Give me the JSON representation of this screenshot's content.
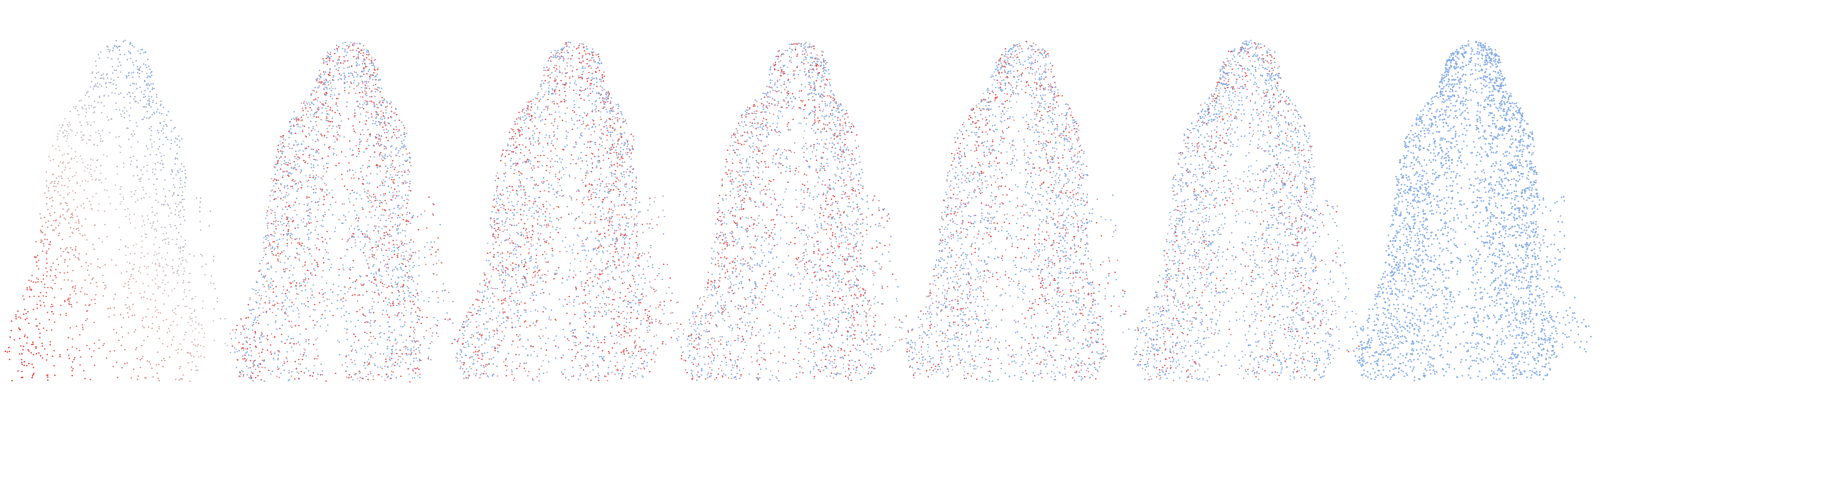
{
  "figure": {
    "background": "#ffffff",
    "panel_count": 7,
    "palette": {
      "red": "#e8362e",
      "mid": "#d6c2bd",
      "blue": "#6e9fe6"
    },
    "panels": [
      {
        "id": "panel-1",
        "style": "gradient",
        "red_share": 1.0,
        "density": 0.55
      },
      {
        "id": "panel-2",
        "style": "mixed",
        "red_share": 0.42,
        "density": 1.0
      },
      {
        "id": "panel-3",
        "style": "mixed",
        "red_share": 0.45,
        "density": 1.0
      },
      {
        "id": "panel-4",
        "style": "mixed",
        "red_share": 0.38,
        "density": 1.0
      },
      {
        "id": "panel-5",
        "style": "mixed",
        "red_share": 0.33,
        "density": 1.0
      },
      {
        "id": "panel-6",
        "style": "mixed",
        "red_share": 0.22,
        "density": 1.05
      },
      {
        "id": "panel-7",
        "style": "solid",
        "red_share": 0.0,
        "density": 1.25
      }
    ]
  }
}
